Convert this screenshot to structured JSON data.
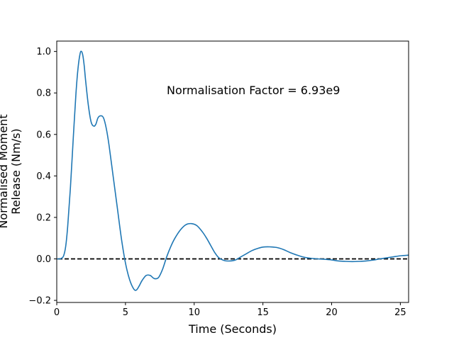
{
  "chart_data": {
    "type": "line",
    "title": "",
    "xlabel": "Time (Seconds)",
    "ylabel_lines": [
      "Normalised Moment",
      "Release (Nm/s)"
    ],
    "xlim": [
      0,
      25.6
    ],
    "ylim": [
      -0.21,
      1.05
    ],
    "xticks": [
      0,
      5,
      10,
      15,
      20,
      25
    ],
    "xtick_labels": [
      "0",
      "5",
      "10",
      "15",
      "20",
      "25"
    ],
    "yticks": [
      -0.2,
      0.0,
      0.2,
      0.4,
      0.6,
      0.8,
      1.0
    ],
    "ytick_labels": [
      "−0.2",
      "0.0",
      "0.2",
      "0.4",
      "0.6",
      "0.8",
      "1.0"
    ],
    "grid": false,
    "annotation": "Normalisation Factor = 6.93e9",
    "reference_line": {
      "y": 0,
      "style": "dashed",
      "color": "#000000"
    },
    "series": [
      {
        "color": "#1f77b4",
        "x": [
          0.0,
          0.2,
          0.35,
          0.5,
          0.65,
          0.8,
          1.0,
          1.2,
          1.4,
          1.55,
          1.7,
          1.8,
          1.9,
          2.0,
          2.1,
          2.3,
          2.5,
          2.7,
          2.85,
          3.0,
          3.2,
          3.4,
          3.6,
          3.8,
          4.1,
          4.4,
          4.7,
          5.0,
          5.3,
          5.6,
          5.8,
          6.0,
          6.2,
          6.5,
          6.8,
          7.1,
          7.4,
          7.7,
          8.0,
          8.3,
          8.6,
          9.0,
          9.4,
          9.8,
          10.2,
          10.6,
          10.9,
          11.2,
          11.5,
          11.8,
          12.2,
          12.6,
          13.0,
          13.4,
          13.8,
          14.2,
          14.6,
          15.0,
          15.5,
          16.0,
          16.5,
          17.0,
          17.5,
          18.0,
          18.5,
          19.0,
          19.5,
          20.0,
          20.5,
          21.0,
          21.5,
          22.0,
          22.5,
          23.0,
          23.5,
          24.0,
          24.5,
          25.0,
          25.6
        ],
        "y": [
          0.0,
          0.0,
          0.003,
          0.015,
          0.06,
          0.16,
          0.35,
          0.58,
          0.8,
          0.92,
          0.99,
          1.0,
          0.98,
          0.93,
          0.86,
          0.74,
          0.66,
          0.64,
          0.65,
          0.68,
          0.69,
          0.68,
          0.63,
          0.55,
          0.4,
          0.25,
          0.1,
          -0.02,
          -0.1,
          -0.145,
          -0.15,
          -0.13,
          -0.105,
          -0.08,
          -0.08,
          -0.095,
          -0.09,
          -0.05,
          0.01,
          0.06,
          0.1,
          0.14,
          0.165,
          0.17,
          0.16,
          0.13,
          0.1,
          0.065,
          0.03,
          0.005,
          -0.008,
          -0.01,
          -0.005,
          0.01,
          0.025,
          0.04,
          0.05,
          0.057,
          0.058,
          0.055,
          0.045,
          0.03,
          0.018,
          0.008,
          0.003,
          0.0,
          -0.002,
          -0.005,
          -0.01,
          -0.012,
          -0.013,
          -0.012,
          -0.01,
          -0.006,
          0.0,
          0.005,
          0.01,
          0.015,
          0.018
        ]
      }
    ]
  }
}
